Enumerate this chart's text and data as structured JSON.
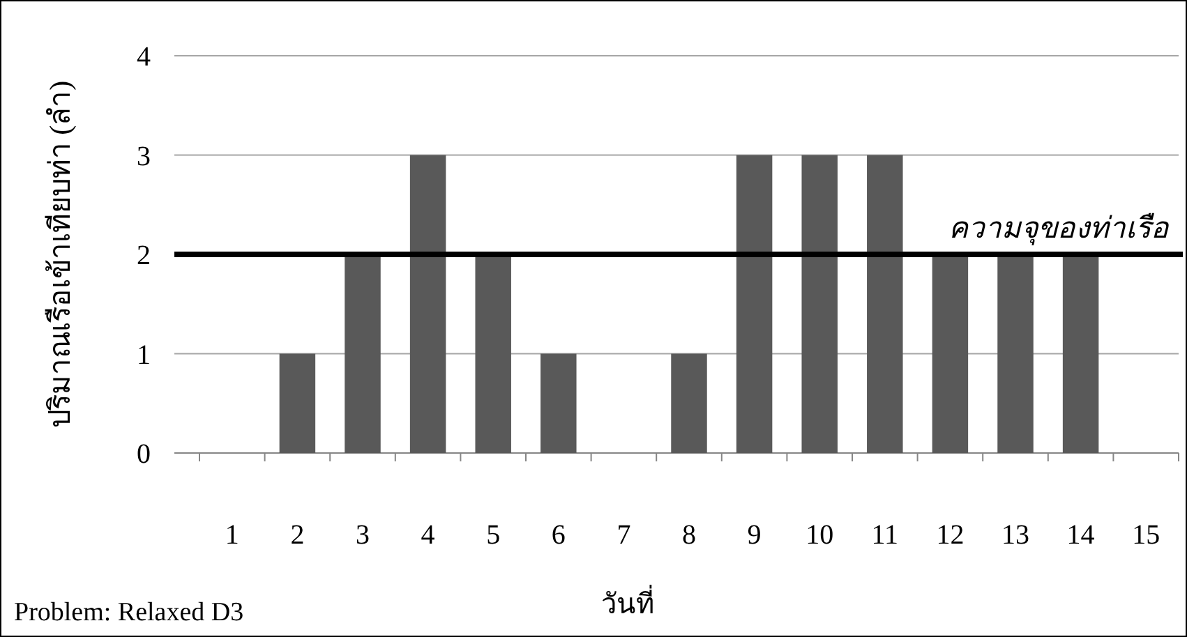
{
  "chart_data": {
    "type": "bar",
    "categories": [
      "1",
      "2",
      "3",
      "4",
      "5",
      "6",
      "7",
      "8",
      "9",
      "10",
      "11",
      "12",
      "13",
      "14",
      "15"
    ],
    "values": [
      0,
      1,
      2,
      3,
      2,
      1,
      0,
      1,
      3,
      3,
      3,
      2,
      2,
      2,
      0
    ],
    "color": "#595959",
    "ylim": [
      0,
      4
    ],
    "yticks": [
      0,
      1,
      2,
      3,
      4
    ],
    "grid": "y",
    "ylabel": "ปริมาณเรือเข้าเทียบท่า (ลำ)",
    "xlabel": "วันที่",
    "ref_lines": [
      {
        "axis": "y",
        "value": 2,
        "label": "ความจุของท่าเรือ",
        "color": "#000000"
      }
    ],
    "annotations": [
      "Problem: Relaxed D3"
    ]
  }
}
